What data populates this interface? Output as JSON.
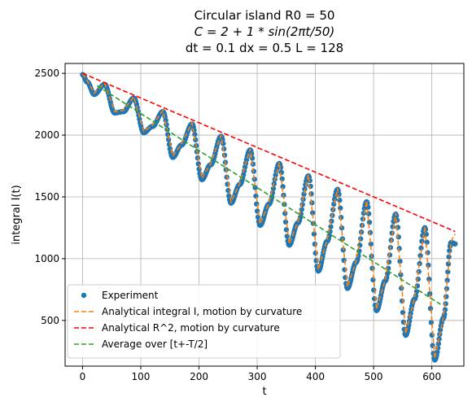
{
  "chart_data": {
    "type": "line",
    "title_lines": [
      "Circular island R0 = 50",
      "C = 2 + 1 * sin(2πt/50)",
      "dt = 0.1 dx = 0.5 L = 128"
    ],
    "xlabel": "t",
    "ylabel": "integral I(t)",
    "xlim": [
      -30,
      655
    ],
    "ylim": [
      130,
      2580
    ],
    "xticks": [
      0,
      100,
      200,
      300,
      400,
      500,
      600
    ],
    "yticks": [
      500,
      1000,
      1500,
      2000,
      2500
    ],
    "grid": true,
    "legend_position": "lower-left",
    "period": 50,
    "series": [
      {
        "name": "Experiment",
        "style": "dots",
        "color": "#1f77b4",
        "x": [
          0,
          8,
          20,
          38,
          55,
          70,
          88,
          105,
          120,
          138,
          155,
          170,
          188,
          205,
          220,
          238,
          255,
          270,
          288,
          305,
          320,
          338,
          355,
          370,
          388,
          405,
          420,
          438,
          455,
          470,
          488,
          505,
          520,
          538,
          555,
          570,
          588,
          605,
          620,
          633,
          640
        ],
        "y": [
          2490,
          2430,
          2330,
          2410,
          2180,
          2190,
          2300,
          2020,
          2070,
          2190,
          1820,
          1920,
          2090,
          1640,
          1760,
          1990,
          1450,
          1600,
          1880,
          1270,
          1440,
          1770,
          1110,
          1290,
          1670,
          900,
          1140,
          1560,
          760,
          970,
          1460,
          580,
          820,
          1360,
          380,
          670,
          1250,
          180,
          520,
          1130,
          1120
        ]
      },
      {
        "name": "Analytical integral I, motion by curvature",
        "style": "dashed",
        "color": "#ff7f0e",
        "x": [
          0,
          8,
          20,
          38,
          55,
          70,
          88,
          105,
          120,
          138,
          155,
          170,
          188,
          205,
          220,
          238,
          255,
          270,
          288,
          305,
          320,
          338,
          355,
          370,
          388,
          405,
          420,
          438,
          455,
          470,
          488,
          505,
          520,
          538,
          555,
          570,
          588,
          605,
          620,
          633,
          640
        ],
        "y": [
          2500,
          2440,
          2340,
          2420,
          2190,
          2200,
          2310,
          2030,
          2080,
          2200,
          1830,
          1930,
          2100,
          1650,
          1770,
          2000,
          1460,
          1610,
          1890,
          1280,
          1450,
          1780,
          1120,
          1300,
          1680,
          910,
          1150,
          1570,
          770,
          980,
          1470,
          590,
          830,
          1370,
          390,
          680,
          1260,
          190,
          530,
          1140,
          1200
        ]
      },
      {
        "name": "Analytical R^2, motion by curvature",
        "style": "dashed",
        "color": "#ff0000",
        "x": [
          0,
          640
        ],
        "y": [
          2500,
          1220
        ]
      },
      {
        "name": "Average over [t+-T/2]",
        "style": "dashed",
        "color": "#2ca02c",
        "x": [
          25,
          615
        ],
        "y": [
          2400,
          630
        ]
      }
    ]
  }
}
